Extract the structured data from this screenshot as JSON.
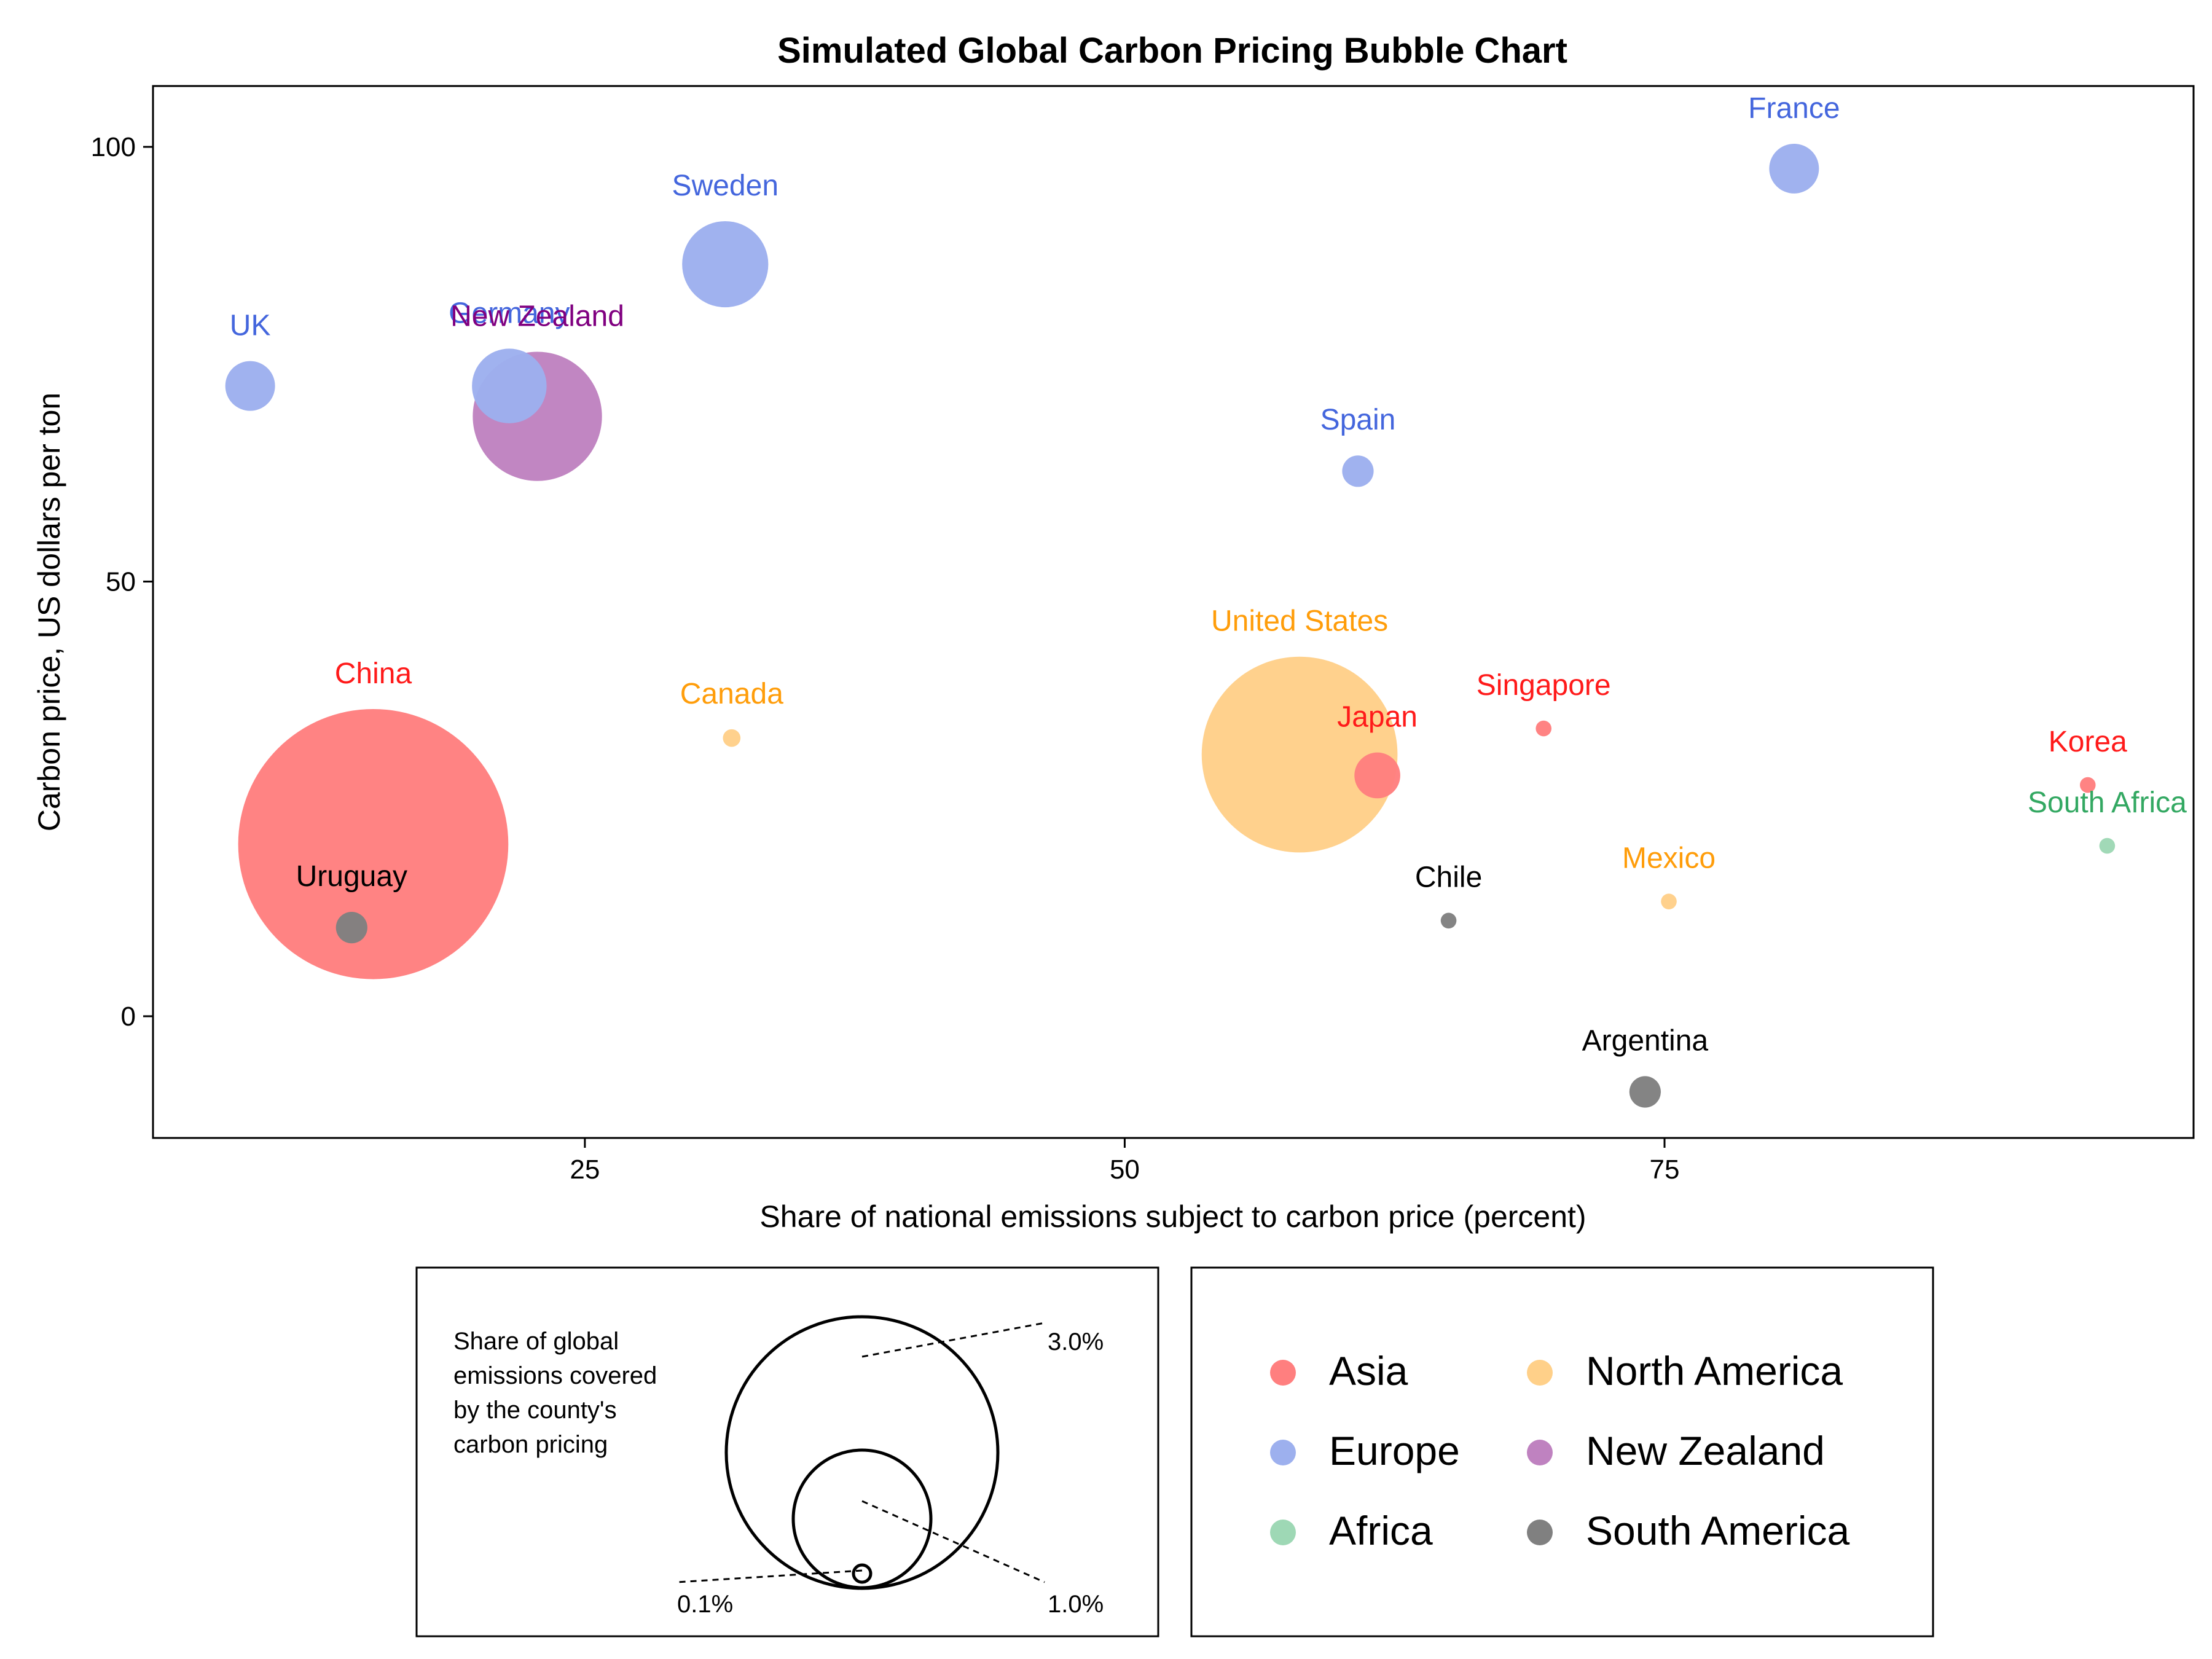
{
  "chart_data": {
    "type": "scatter",
    "title": "Simulated Global Carbon Pricing Bubble Chart",
    "xlabel": "Share of national emissions subject to carbon price (percent)",
    "ylabel": "Carbon price, US dollars per ton",
    "xlim": [
      5,
      99.5
    ],
    "ylim": [
      -14,
      107
    ],
    "xticks": [
      25,
      50,
      75
    ],
    "yticks": [
      0,
      50,
      100
    ],
    "grid": false,
    "colors": {
      "Asia": "#ff7f7f",
      "Europe": "#9db0ee",
      "Africa": "#9ed8b5",
      "North America": "#ffd089",
      "New Zealand": "#bf82c0",
      "South America": "#808080"
    },
    "label_colors": {
      "Asia": "#ff1a1a",
      "Europe": "#4466dd",
      "Africa": "#33a862",
      "North America": "#ff9d0a",
      "New Zealand": "#800080",
      "South America": "#000000"
    },
    "points": [
      {
        "name": "France",
        "region": "Europe",
        "x": 81,
        "y": 97.5,
        "share": 0.2
      },
      {
        "name": "Sweden",
        "region": "Europe",
        "x": 31.5,
        "y": 86.5,
        "share": 0.6
      },
      {
        "name": "UK",
        "region": "Europe",
        "x": 9.5,
        "y": 72.5,
        "share": 0.2
      },
      {
        "name": "Germany",
        "region": "Europe",
        "x": 21.5,
        "y": 72.5,
        "share": 0.45
      },
      {
        "name": "New Zealand",
        "region": "New Zealand",
        "x": 22.8,
        "y": 69,
        "share": 1.35
      },
      {
        "name": "Spain",
        "region": "Europe",
        "x": 60.8,
        "y": 62.7,
        "share": 0.08
      },
      {
        "name": "China",
        "region": "Asia",
        "x": 15.2,
        "y": 19.8,
        "share": 5.9
      },
      {
        "name": "Canada",
        "region": "North America",
        "x": 31.8,
        "y": 32,
        "share": 0.025
      },
      {
        "name": "United States",
        "region": "North America",
        "x": 58.1,
        "y": 30.1,
        "share": 3.1
      },
      {
        "name": "Japan",
        "region": "Asia",
        "x": 61.7,
        "y": 27.7,
        "share": 0.17
      },
      {
        "name": "Singapore",
        "region": "Asia",
        "x": 69.4,
        "y": 33.1,
        "share": 0.02
      },
      {
        "name": "Korea",
        "region": "Asia",
        "x": 94.6,
        "y": 26.6,
        "share": 0.02
      },
      {
        "name": "South Africa",
        "region": "Africa",
        "x": 95.5,
        "y": 19.6,
        "share": 0.02
      },
      {
        "name": "Mexico",
        "region": "North America",
        "x": 75.2,
        "y": 13.2,
        "share": 0.02
      },
      {
        "name": "Chile",
        "region": "South America",
        "x": 65,
        "y": 11,
        "share": 0.02
      },
      {
        "name": "Uruguay",
        "region": "South America",
        "x": 14.2,
        "y": 10.2,
        "share": 0.08
      },
      {
        "name": "Argentina",
        "region": "South America",
        "x": 74.1,
        "y": -8.7,
        "share": 0.08
      }
    ]
  },
  "size_legend": {
    "title_lines": [
      "Share of global",
      "emissions covered",
      "by the county's",
      "carbon pricing"
    ],
    "items": [
      {
        "share": 3.0,
        "label": "3.0%"
      },
      {
        "share": 1.0,
        "label": "1.0%"
      },
      {
        "share": 0.1,
        "label": "0.1%"
      }
    ]
  },
  "color_legend": {
    "items": [
      "Asia",
      "Europe",
      "Africa",
      "North America",
      "New Zealand",
      "South America"
    ]
  }
}
